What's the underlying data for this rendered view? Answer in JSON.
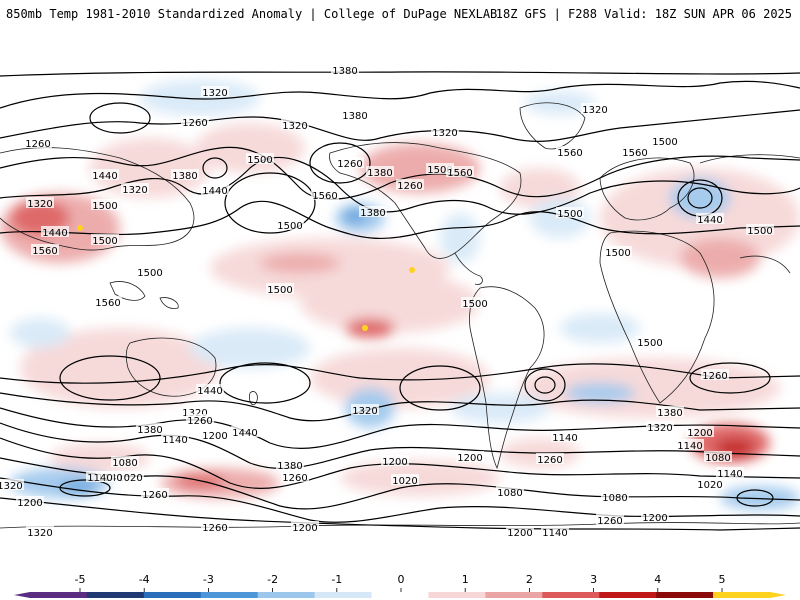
{
  "header": {
    "left": "850mb Temp 1981-2010 Standardized Anomaly | College of DuPage NEXLAB",
    "right": "18Z GFS | F288 Valid: 18Z SUN APR 06 2025"
  },
  "colorbar": {
    "ticks": [
      {
        "label": "-5",
        "value": -5
      },
      {
        "label": "-4",
        "value": -4
      },
      {
        "label": "-3",
        "value": -3
      },
      {
        "label": "-2",
        "value": -2
      },
      {
        "label": "-1",
        "value": -1
      },
      {
        "label": "0",
        "value": 0
      },
      {
        "label": "1",
        "value": 1
      },
      {
        "label": "2",
        "value": 2
      },
      {
        "label": "3",
        "value": 3
      },
      {
        "label": "4",
        "value": 4
      },
      {
        "label": "5",
        "value": 5
      }
    ],
    "colors": [
      "#5a2d82",
      "#1f3a73",
      "#2a6db8",
      "#4d97d8",
      "#9cc6ec",
      "#d6e8f7",
      "#ffffff",
      "#f6d6d6",
      "#eba4a4",
      "#dc5a5a",
      "#c01818",
      "#8a0a0a",
      "#ffd21f"
    ]
  },
  "contour_labels": [
    "1380",
    "1320",
    "1320",
    "1260",
    "1260",
    "1500",
    "1440",
    "1380",
    "1440",
    "1380",
    "1320",
    "1260",
    "1320",
    "1500",
    "1440",
    "1500",
    "1560",
    "1380",
    "1320",
    "1260",
    "1500",
    "1560",
    "1380",
    "1560",
    "1500",
    "1500",
    "1500",
    "1560",
    "1560",
    "1500",
    "1500",
    "1440",
    "1500",
    "1320",
    "1560",
    "1500",
    "1500",
    "1500",
    "1440",
    "1380",
    "1320",
    "1320",
    "1260",
    "1200",
    "1140",
    "1200",
    "1260",
    "1380",
    "1440",
    "1200",
    "1140",
    "1260",
    "1080",
    "1020",
    "1140",
    "1080",
    "1200",
    "1260",
    "1320",
    "1380",
    "1140",
    "1200",
    "1260",
    "1320",
    "1200",
    "1140",
    "1080",
    "1020",
    "1260",
    "1080",
    "1140",
    "1200",
    "1260",
    "1020",
    "1140",
    "1200",
    "1320"
  ]
}
